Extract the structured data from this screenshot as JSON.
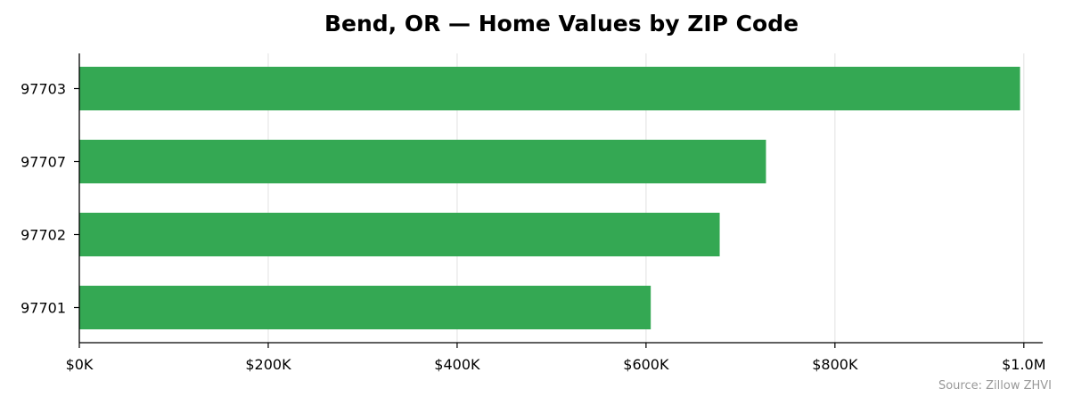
{
  "chart_data": {
    "type": "bar",
    "orientation": "horizontal",
    "title": "Bend, OR — Home Values by ZIP Code",
    "xlabel": "",
    "ylabel": "",
    "categories": [
      "97703",
      "97707",
      "97702",
      "97701"
    ],
    "values": [
      996000,
      727000,
      678000,
      605000
    ],
    "xlim": [
      0,
      1020000
    ],
    "x_ticks": [
      0,
      200000,
      400000,
      600000,
      800000,
      1000000
    ],
    "x_tick_labels": [
      "$0K",
      "$200K",
      "$400K",
      "$600K",
      "$800K",
      "$1.0M"
    ],
    "grid": "x",
    "source_note": "Source: Zillow ZHVI",
    "colors": {
      "bar": "#34a853",
      "grid": "#e6e6e6",
      "axis": "#000000",
      "text": "#000000",
      "note": "#999999"
    }
  }
}
